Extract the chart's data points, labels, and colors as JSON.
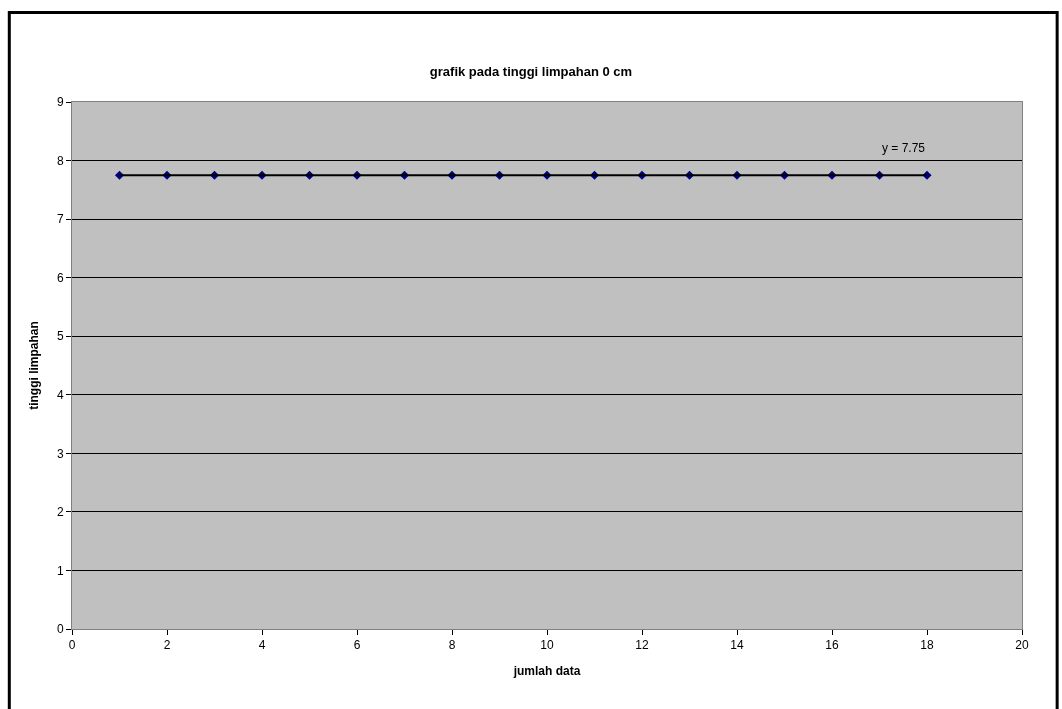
{
  "chart_data": {
    "type": "scatter",
    "title": "grafik pada tinggi limpahan 0 cm",
    "xlabel": "jumlah data",
    "ylabel": "tinggi limpahan",
    "x": [
      1,
      2,
      3,
      4,
      5,
      6,
      7,
      8,
      9,
      10,
      11,
      12,
      13,
      14,
      15,
      16,
      17,
      18
    ],
    "series": [
      {
        "color": "#000080",
        "marker": "diamond",
        "values": [
          7.75,
          7.75,
          7.75,
          7.75,
          7.75,
          7.75,
          7.75,
          7.75,
          7.75,
          7.75,
          7.75,
          7.75,
          7.75,
          7.75,
          7.75,
          7.75,
          7.75,
          7.75
        ]
      },
      {
        "type": "line",
        "color": "#000000",
        "x": [
          1,
          18
        ],
        "values": [
          7.75,
          7.75
        ],
        "marker": "none",
        "line_style": "solid"
      }
    ],
    "annotations": [
      {
        "text": "y = 7.75",
        "x": 18,
        "y": 7.75
      }
    ],
    "xlim": [
      0,
      20
    ],
    "xticks": [
      0,
      2,
      4,
      6,
      8,
      10,
      12,
      14,
      16,
      18,
      20
    ],
    "ylim": [
      0,
      9
    ],
    "yticks": [
      0,
      1,
      2,
      3,
      4,
      5,
      6,
      7,
      8,
      9
    ],
    "grid": "y"
  }
}
